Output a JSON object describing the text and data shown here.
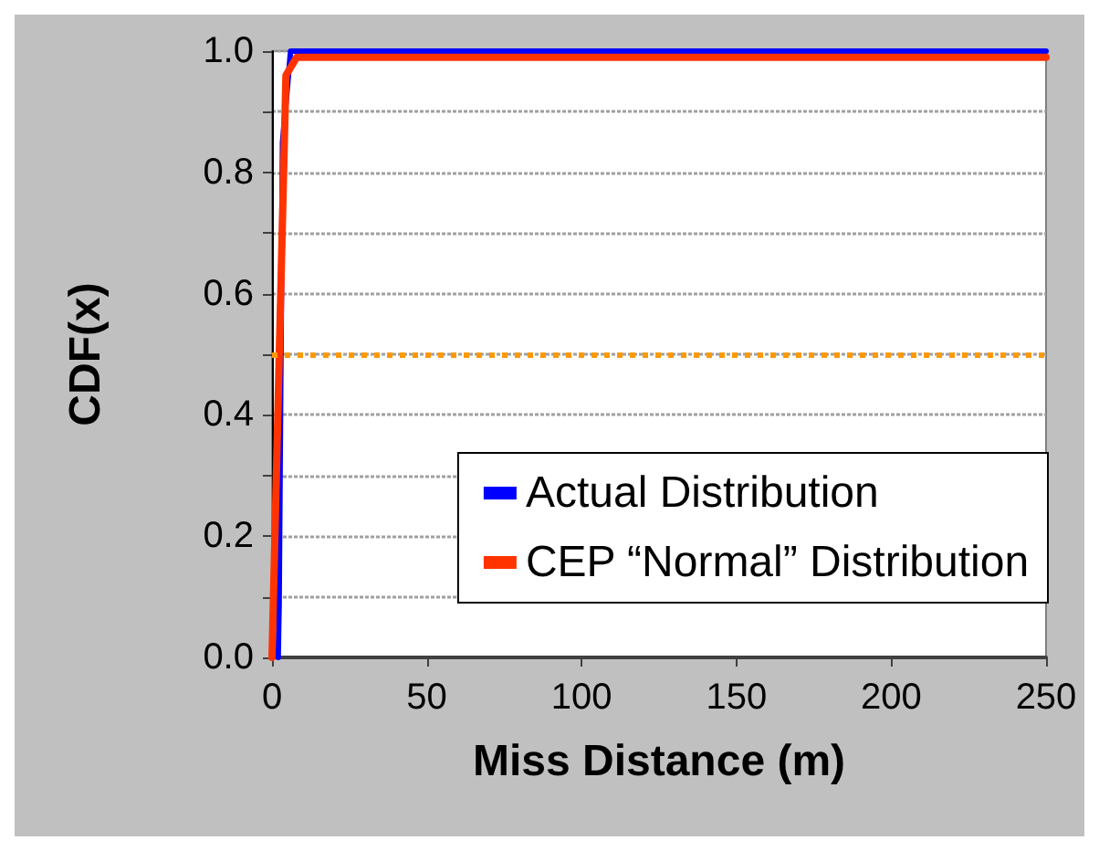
{
  "chart_data": {
    "type": "line",
    "xlabel": "Miss Distance (m)",
    "ylabel": "CDF(x)",
    "xlim": [
      0,
      250
    ],
    "xticks": [
      0,
      50,
      100,
      150,
      200,
      250
    ],
    "ylim": [
      0,
      1
    ],
    "yticks": [
      {
        "value": 0,
        "label": "0.0"
      },
      {
        "value": 0.1,
        "label": null
      },
      {
        "value": 0.2,
        "label": "0.2"
      },
      {
        "value": 0.3,
        "label": null
      },
      {
        "value": 0.4,
        "label": "0.4"
      },
      {
        "value": 0.5,
        "label": null
      },
      {
        "value": 0.6,
        "label": "0.6"
      },
      {
        "value": 0.7,
        "label": null
      },
      {
        "value": 0.8,
        "label": "0.8"
      },
      {
        "value": 0.9,
        "label": null
      },
      {
        "value": 1,
        "label": "1.0"
      }
    ],
    "grid": "y",
    "legend": "bottom right",
    "marker": "none",
    "line_style": "solid",
    "series": [
      {
        "name": "Actual Distribution",
        "color": "#0000ff",
        "x": [
          2,
          2.3,
          3.4,
          6,
          250
        ],
        "values": [
          0,
          0.09,
          0.85,
          1,
          1
        ]
      },
      {
        "name": "CEP “Normal” Distribution",
        "color": "#ff3300",
        "x": [
          0,
          4.5,
          8,
          250
        ],
        "values": [
          0,
          0.96,
          0.99,
          0.99
        ]
      }
    ],
    "ref_lines": [
      {
        "axis": "y",
        "value": 0.5,
        "label": null,
        "color": "#ff9900",
        "line_style": "dotted"
      }
    ]
  }
}
